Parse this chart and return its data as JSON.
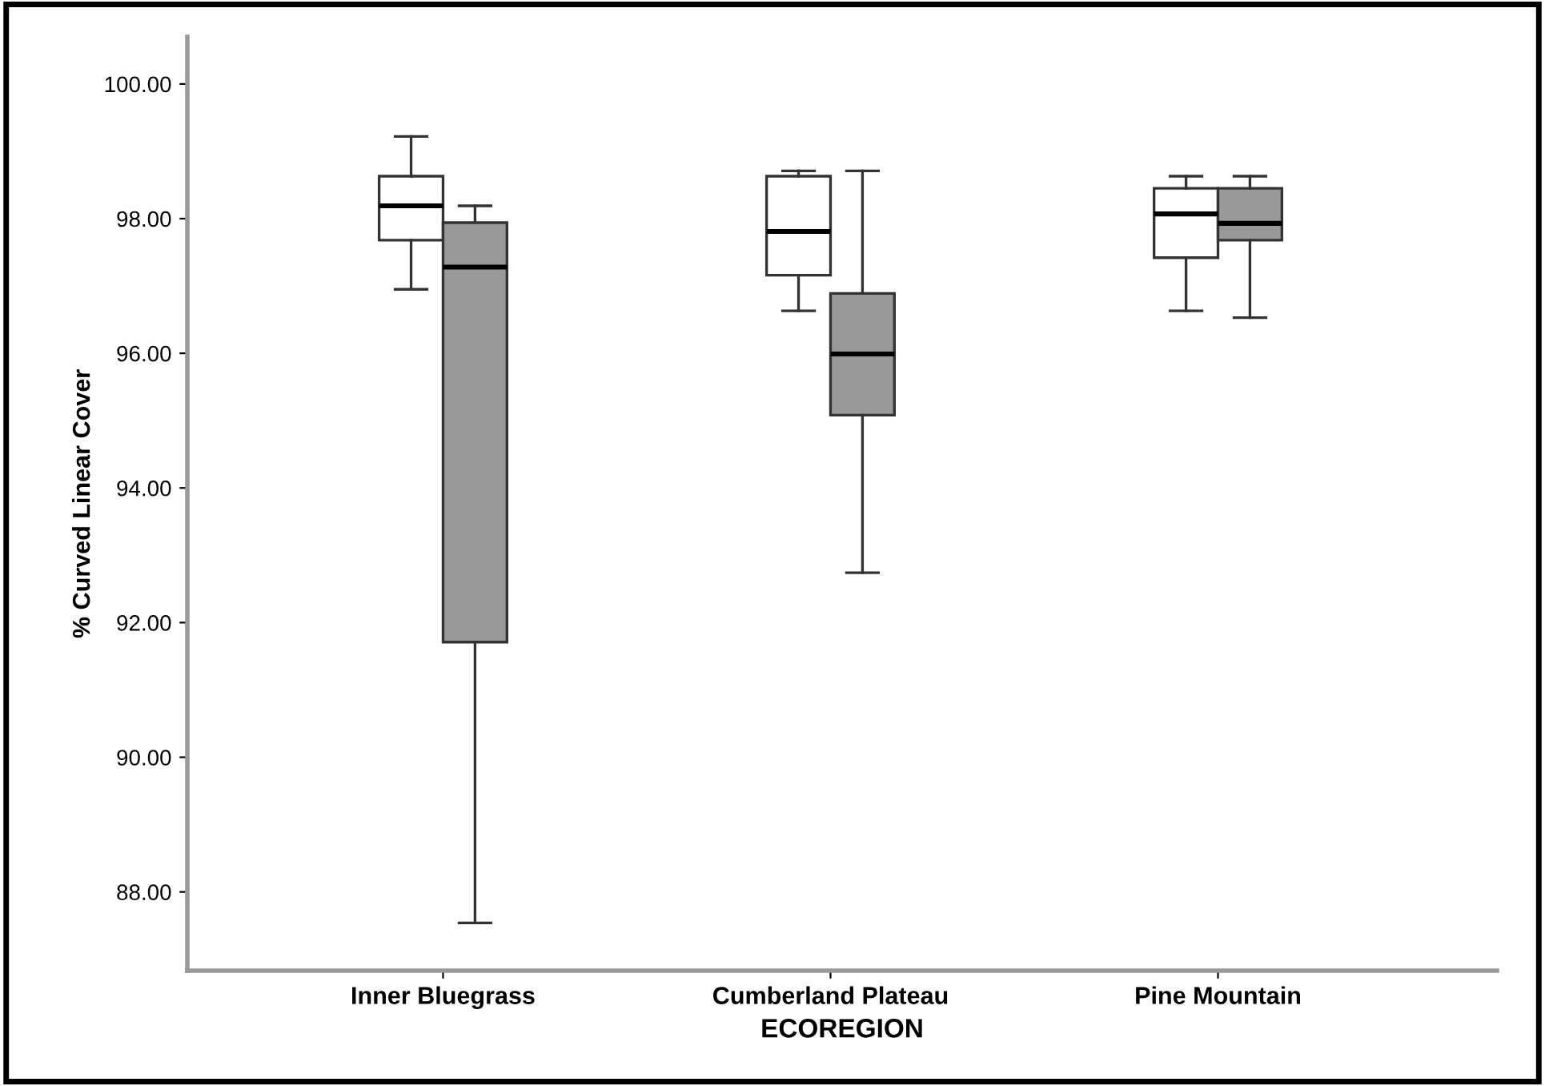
{
  "chart_data": {
    "type": "box",
    "xlabel": "ECOREGION",
    "ylabel": "% Curved Linear Cover",
    "categories": [
      "Inner Bluegrass",
      "Cumberland Plateau",
      "Pine Mountain"
    ],
    "ylim": [
      86.83,
      100.7
    ],
    "yticks": [
      {
        "value": 88,
        "label": "88.00"
      },
      {
        "value": 90,
        "label": "90.00"
      },
      {
        "value": 92,
        "label": "92.00"
      },
      {
        "value": 94,
        "label": "94.00"
      },
      {
        "value": 96,
        "label": "96.00"
      },
      {
        "value": 98,
        "label": "98.00"
      },
      {
        "value": 100,
        "label": "100.00"
      }
    ],
    "grid": false,
    "legend": false,
    "series": [
      {
        "color": "#ffffff",
        "boxes": [
          {
            "low": 96.95,
            "q1": 97.68,
            "median": 98.19,
            "q3": 98.63,
            "high": 99.22
          },
          {
            "low": 96.63,
            "q1": 97.16,
            "median": 97.81,
            "q3": 98.63,
            "high": 98.71
          },
          {
            "low": 96.63,
            "q1": 97.42,
            "median": 98.07,
            "q3": 98.45,
            "high": 98.63
          }
        ]
      },
      {
        "color": "#999999",
        "boxes": [
          {
            "low": 87.54,
            "q1": 91.71,
            "median": 97.28,
            "q3": 97.94,
            "high": 98.19
          },
          {
            "low": 92.74,
            "q1": 95.08,
            "median": 95.99,
            "q3": 96.89,
            "high": 98.71
          },
          {
            "low": 96.53,
            "q1": 97.68,
            "median": 97.93,
            "q3": 98.45,
            "high": 98.63
          }
        ]
      }
    ]
  }
}
